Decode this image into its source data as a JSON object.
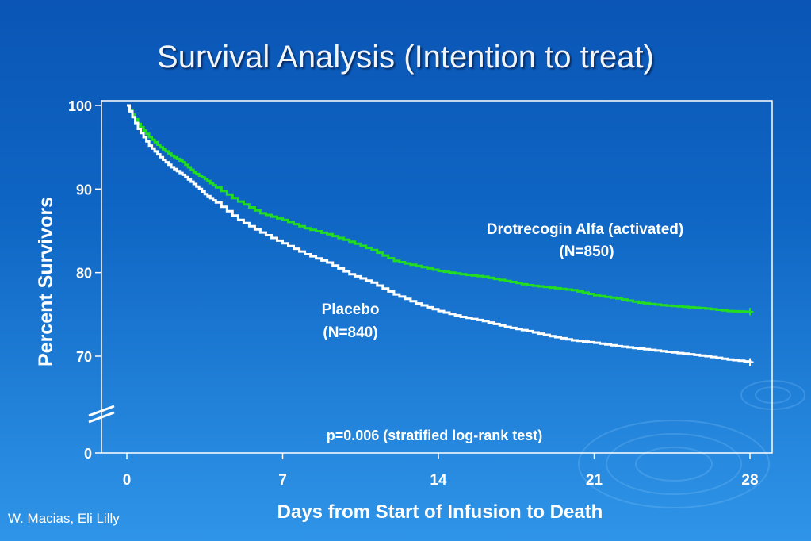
{
  "title": "Survival Analysis (Intention to treat)",
  "footer": "W. Macias, Eli Lilly",
  "chart_data": {
    "type": "line",
    "xlabel": "Days from Start of Infusion to Death",
    "ylabel": "Percent Survivors",
    "x_ticks": [
      0,
      7,
      14,
      21,
      28
    ],
    "y_ticks": [
      100,
      90,
      80,
      70
    ],
    "y_break_label": "0",
    "xlim": [
      0,
      28
    ],
    "ylim": [
      0,
      100
    ],
    "y_axis_break": true,
    "annotation": "p=0.006 (stratified log-rank test)",
    "series": [
      {
        "name": "Drotrecogin Alfa (activated)",
        "sublabel": "(N=850)",
        "color": "#22dd22",
        "x": [
          0,
          0.5,
          1,
          1.5,
          2,
          2.5,
          3,
          3.5,
          4,
          5,
          6,
          7,
          8,
          9,
          10,
          11,
          12,
          13,
          14,
          15,
          16,
          17,
          18,
          19,
          20,
          21,
          22,
          23,
          24,
          25,
          26,
          27,
          28
        ],
        "y": [
          100,
          97.8,
          96.2,
          95.0,
          94.0,
          93.2,
          92.0,
          91.2,
          90.2,
          88.5,
          87.1,
          86.3,
          85.3,
          84.6,
          83.7,
          82.7,
          81.4,
          80.8,
          80.2,
          79.8,
          79.5,
          79.0,
          78.5,
          78.2,
          77.9,
          77.3,
          76.9,
          76.4,
          76.1,
          75.9,
          75.7,
          75.4,
          75.3
        ]
      },
      {
        "name": "Placebo",
        "sublabel": "(N=840)",
        "color": "#ffffff",
        "x": [
          0,
          0.5,
          1,
          1.5,
          2,
          2.5,
          3,
          3.5,
          4,
          5,
          6,
          7,
          8,
          9,
          10,
          11,
          12,
          13,
          14,
          15,
          16,
          17,
          18,
          19,
          20,
          21,
          22,
          23,
          24,
          25,
          26,
          27,
          28
        ],
        "y": [
          100,
          97.2,
          95.2,
          93.8,
          92.6,
          91.7,
          90.6,
          89.4,
          88.4,
          86.3,
          84.8,
          83.5,
          82.2,
          81.2,
          79.8,
          78.8,
          77.4,
          76.3,
          75.4,
          74.7,
          74.2,
          73.5,
          73.0,
          72.4,
          71.9,
          71.6,
          71.2,
          70.9,
          70.6,
          70.3,
          70.0,
          69.6,
          69.3
        ]
      }
    ],
    "censor_marker": "+",
    "grid": false
  }
}
